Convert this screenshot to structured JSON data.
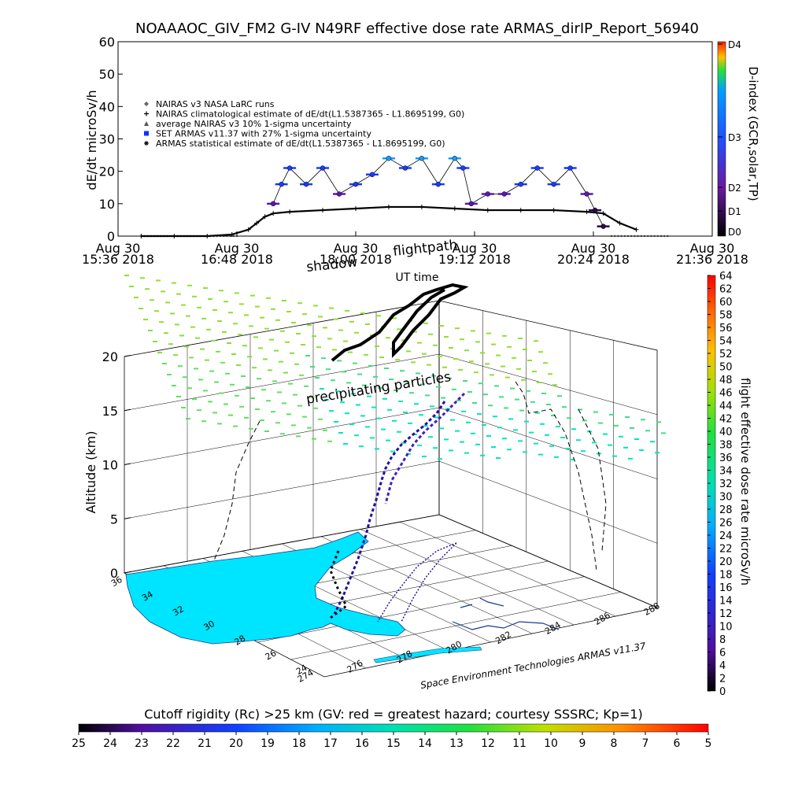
{
  "title": "NOAAAOC_GIV_FM2 G-IV    N49RF   effective dose rate ARMAS_dirIP_Report_56940",
  "chart_data": [
    {
      "type": "scatter",
      "ylabel": "dE/dt microSv/h",
      "xlabel": "UT time",
      "ylim": [
        0,
        60
      ],
      "yticks": [
        0,
        10,
        20,
        30,
        40,
        50,
        60
      ],
      "xticks": [
        {
          "date": "Aug 30",
          "time": "15:36 2018"
        },
        {
          "date": "Aug 30",
          "time": "16:48 2018"
        },
        {
          "date": "Aug 30",
          "time": "18:00 2018"
        },
        {
          "date": "Aug 30",
          "time": "19:12 2018"
        },
        {
          "date": "Aug 30",
          "time": "20:24 2018"
        },
        {
          "date": "Aug 30",
          "time": "21:36 2018"
        }
      ],
      "xrange": [
        "15:36",
        "21:36"
      ],
      "legend_position": "upper-left",
      "legend": [
        {
          "symbol": "diamond",
          "text": "NAIRAS v3 NASA LaRC runs"
        },
        {
          "symbol": "plus",
          "text": "NAIRAS climatological estimate of dE/dt(L1.5387365 - L1.8695199, G0)"
        },
        {
          "symbol": "triangle",
          "text": "average NAIRAS v3 10% 1-sigma uncertainty"
        },
        {
          "symbol": "square-blue",
          "text": "SET ARMAS v11.37 with 27% 1-sigma uncertainty"
        },
        {
          "symbol": "asterisk",
          "text": "ARMAS statistical estimate of dE/dt(L1.5387365 - L1.8695199, G0)"
        }
      ],
      "dindex_axis": {
        "label": "D-index (GCR,solar,TP)",
        "ticks": [
          "D0",
          "D1",
          "D2",
          "D3",
          "D4"
        ]
      },
      "series": [
        {
          "name": "NAIRAS climatological estimate of dE/dt(L1.5387365 - L1.8695199, G0)",
          "x": [
            "15:50",
            "16:10",
            "16:30",
            "16:45",
            "16:55",
            "17:00",
            "17:05",
            "17:10",
            "17:20",
            "17:40",
            "18:00",
            "18:20",
            "18:40",
            "19:00",
            "19:20",
            "19:40",
            "20:00",
            "20:20",
            "20:30",
            "20:40",
            "20:50"
          ],
          "y": [
            0,
            0,
            0,
            0.5,
            2,
            4,
            6,
            7,
            7.5,
            8,
            8.5,
            9,
            9,
            8.5,
            8,
            8,
            8,
            7.5,
            7,
            4,
            2
          ]
        },
        {
          "name": "SET ARMAS v11.37 with 27% 1-sigma uncertainty",
          "x": [
            "17:10",
            "17:15",
            "17:20",
            "17:30",
            "17:40",
            "17:50",
            "18:00",
            "18:10",
            "18:20",
            "18:30",
            "18:40",
            "18:50",
            "19:00",
            "19:05",
            "19:10",
            "19:20",
            "19:30",
            "19:40",
            "19:50",
            "20:00",
            "20:10",
            "20:20",
            "20:25",
            "20:30"
          ],
          "y": [
            10,
            16,
            21,
            16,
            21,
            13,
            16,
            19,
            24,
            21,
            24,
            16,
            24,
            21,
            10,
            13,
            13,
            16,
            21,
            16,
            21,
            13,
            8,
            3
          ]
        }
      ]
    },
    {
      "type": "3d-scatter",
      "zlabel": "Altitude (km)",
      "zlim": [
        0,
        20
      ],
      "zticks": [
        0,
        5,
        10,
        15,
        20
      ],
      "latitude_ticks": [
        "36",
        "34",
        "32",
        "30",
        "28",
        "26",
        "24"
      ],
      "longitude_ticks": [
        "274",
        "276",
        "278",
        "280",
        "282",
        "284",
        "286",
        "288"
      ],
      "annotations": [
        "flightpath",
        "shadow",
        "precipitating particles"
      ],
      "credit": "Space Environment Technologies ARMAS v11.37",
      "colorbar": {
        "label": "flight effective dose rate microSv/h",
        "ticks": [
          0,
          2,
          4,
          6,
          8,
          10,
          12,
          14,
          16,
          18,
          20,
          22,
          24,
          26,
          28,
          30,
          32,
          34,
          36,
          38,
          40,
          42,
          44,
          46,
          48,
          50,
          52,
          54,
          56,
          58,
          60,
          62,
          64
        ]
      }
    }
  ],
  "cutoff_bar": {
    "label": "Cutoff rigidity (Rc) >25 km (GV: red = greatest hazard; courtesy SSSRC; Kp=1)",
    "ticks": [
      "25",
      "24",
      "23",
      "22",
      "21",
      "20",
      "19",
      "18",
      "17",
      "16",
      "15",
      "14",
      "13",
      "12",
      "11",
      "10",
      "9",
      "8",
      "7",
      "6",
      "5"
    ]
  }
}
